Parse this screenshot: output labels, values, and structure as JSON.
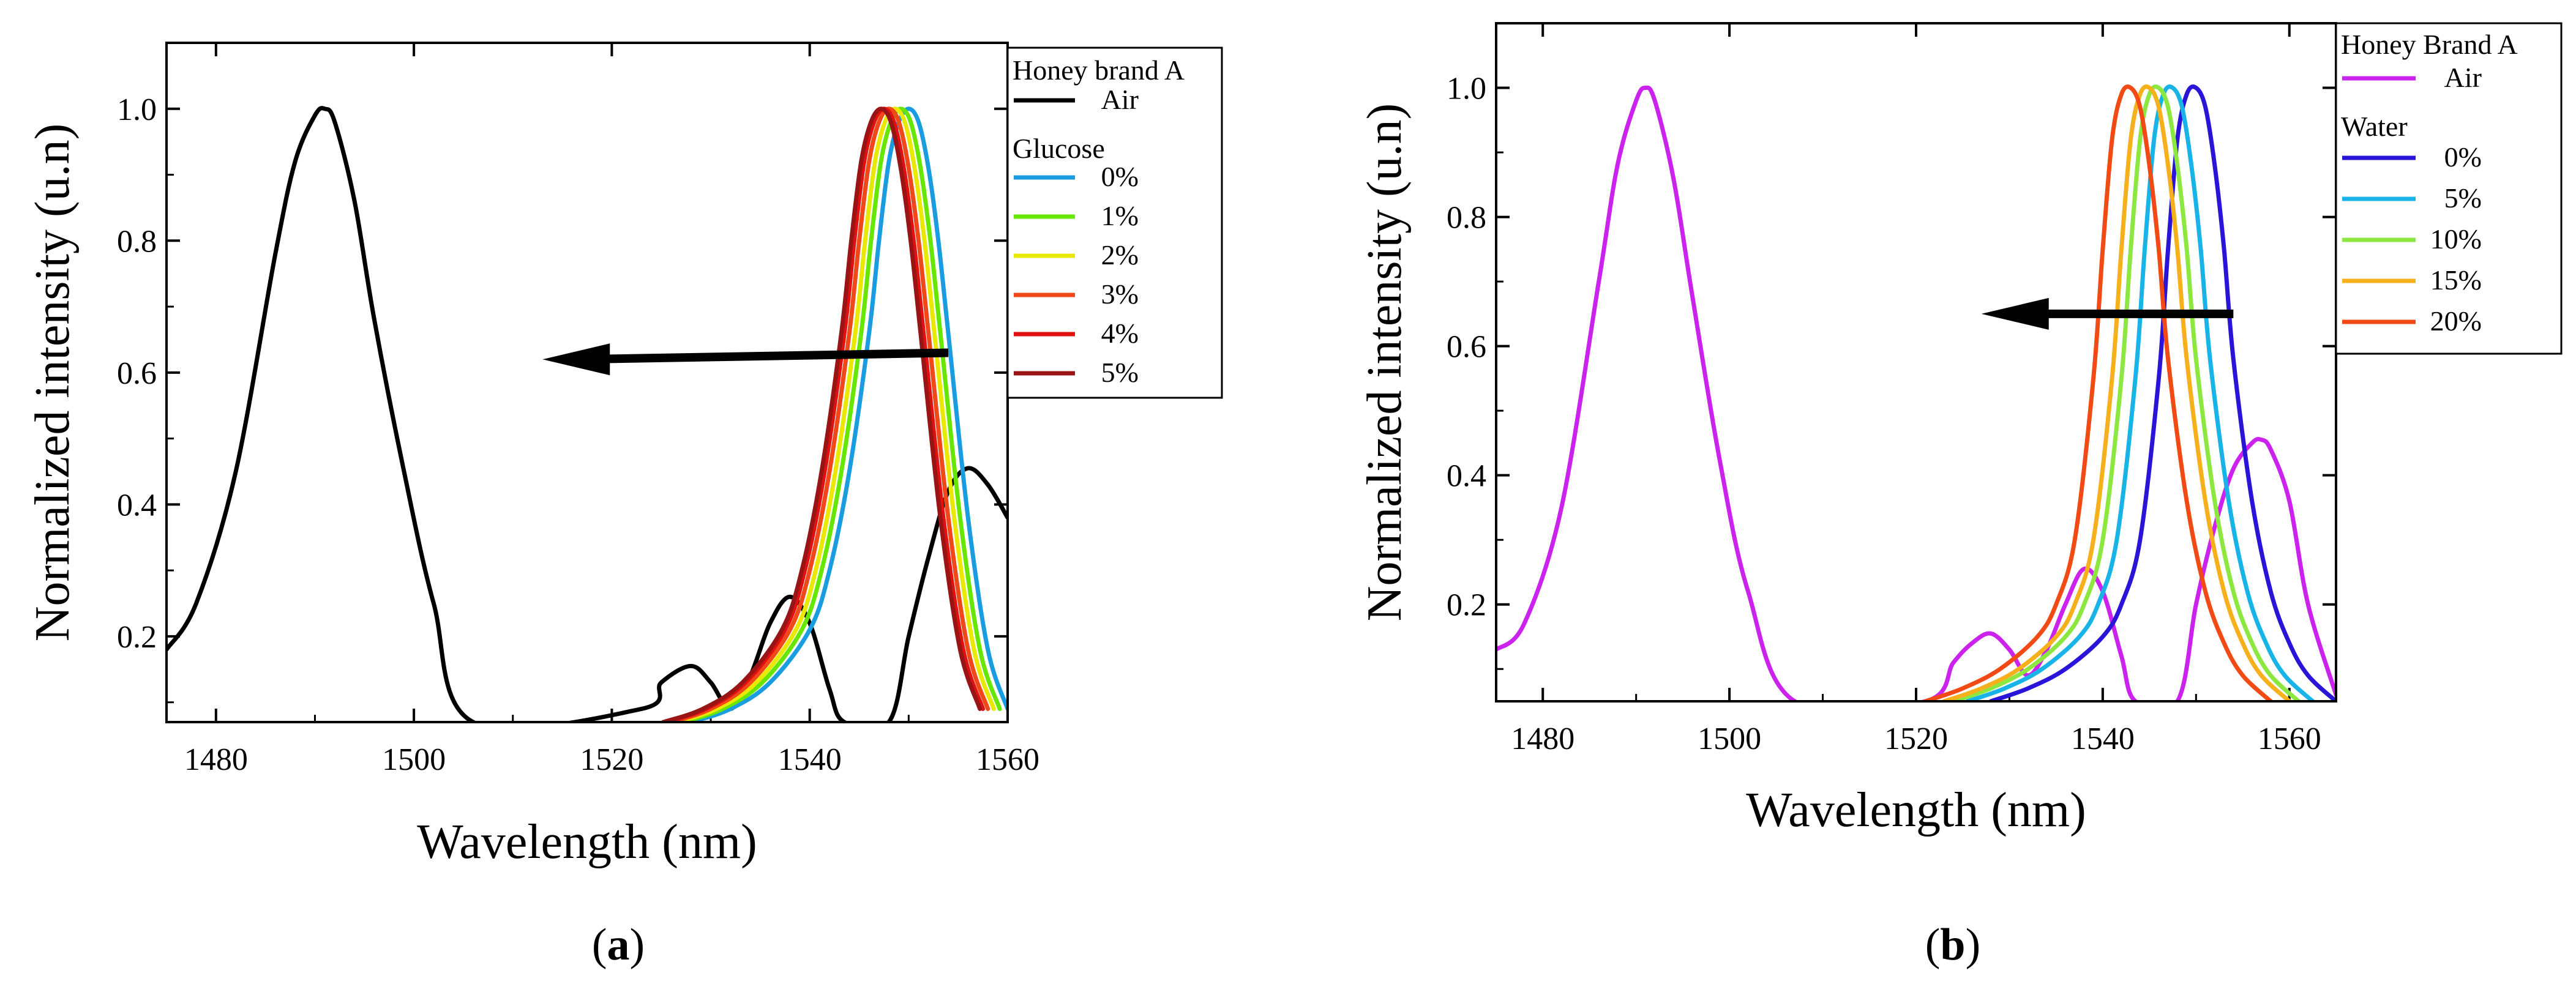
{
  "chart_data": [
    {
      "type": "line",
      "panel_label": "a",
      "xlabel": "Wavelength (nm)",
      "ylabel": "Normalized intensity (u.n)",
      "xlim": [
        1475,
        1560
      ],
      "ylim": [
        0.07,
        1.1
      ],
      "xticks": [
        1480,
        1500,
        1520,
        1540,
        1560
      ],
      "yticks": [
        0.2,
        0.4,
        0.6,
        0.8,
        1.0
      ],
      "ytick_labels": [
        "0.2",
        "0.4",
        "0.6",
        "0.8",
        "1.0"
      ],
      "legend_title": "Honey brand A",
      "legend_group_title": "Glucose",
      "legend_position": "top-right (outside)",
      "arrow": {
        "from": [
          1554,
          0.63
        ],
        "to": [
          1513,
          0.62
        ]
      },
      "series": [
        {
          "name": "Air",
          "color": "#000000",
          "x": [
            1475,
            1478,
            1482,
            1486,
            1488,
            1490,
            1491,
            1492,
            1494,
            1496,
            1499,
            1502,
            1506,
            1523,
            1525,
            1528,
            1530,
            1532,
            1534,
            1536,
            1538,
            1540,
            1542,
            1543.5,
            1548,
            1550,
            1552,
            1554,
            1556,
            1558,
            1560
          ],
          "y": [
            0.18,
            0.25,
            0.45,
            0.78,
            0.92,
            0.99,
            1.0,
            0.98,
            0.86,
            0.68,
            0.45,
            0.25,
            0.07,
            0.09,
            0.13,
            0.155,
            0.13,
            0.09,
            0.14,
            0.22,
            0.26,
            0.22,
            0.12,
            0.07,
            0.07,
            0.2,
            0.32,
            0.42,
            0.455,
            0.43,
            0.38
          ]
        },
        {
          "name": "0%",
          "color": "#1a9ce0",
          "x": [
            1528,
            1532,
            1536,
            1540,
            1542,
            1544,
            1546,
            1547,
            1548,
            1549,
            1550,
            1551,
            1552,
            1553,
            1554,
            1556,
            1558,
            1560
          ],
          "y": [
            0.07,
            0.09,
            0.13,
            0.21,
            0.3,
            0.45,
            0.66,
            0.8,
            0.92,
            0.98,
            1.0,
            0.98,
            0.91,
            0.8,
            0.66,
            0.38,
            0.18,
            0.09
          ]
        },
        {
          "name": "1%",
          "color": "#66e600",
          "x": [
            1527.2,
            1531.2,
            1535.2,
            1539.2,
            1541.2,
            1543.2,
            1545.2,
            1546.2,
            1547.2,
            1548.2,
            1549.2,
            1550.2,
            1551.2,
            1552.2,
            1553.2,
            1555.2,
            1557.2,
            1559.2
          ],
          "y": [
            0.07,
            0.09,
            0.13,
            0.21,
            0.3,
            0.45,
            0.66,
            0.8,
            0.92,
            0.98,
            1.0,
            0.98,
            0.91,
            0.8,
            0.66,
            0.38,
            0.18,
            0.09
          ]
        },
        {
          "name": "2%",
          "color": "#e8e800",
          "x": [
            1526.6,
            1530.6,
            1534.6,
            1538.6,
            1540.6,
            1542.6,
            1544.6,
            1545.6,
            1546.6,
            1547.6,
            1548.6,
            1549.6,
            1550.6,
            1551.6,
            1552.6,
            1554.6,
            1556.6,
            1558.6
          ],
          "y": [
            0.07,
            0.09,
            0.13,
            0.21,
            0.3,
            0.45,
            0.66,
            0.8,
            0.92,
            0.98,
            1.0,
            0.98,
            0.91,
            0.8,
            0.66,
            0.38,
            0.18,
            0.09
          ]
        },
        {
          "name": "3%",
          "color": "#f04818",
          "x": [
            1526.0,
            1530.0,
            1534.0,
            1538.0,
            1540.0,
            1542.0,
            1544.0,
            1545.0,
            1546.0,
            1547.0,
            1548.0,
            1549.0,
            1550.0,
            1551.0,
            1552.0,
            1554.0,
            1556.0,
            1558.0
          ],
          "y": [
            0.07,
            0.09,
            0.13,
            0.21,
            0.3,
            0.45,
            0.66,
            0.8,
            0.92,
            0.98,
            1.0,
            0.98,
            0.91,
            0.8,
            0.66,
            0.38,
            0.18,
            0.09
          ]
        },
        {
          "name": "4%",
          "color": "#e01010",
          "x": [
            1525.5,
            1529.5,
            1533.5,
            1537.5,
            1539.5,
            1541.5,
            1543.5,
            1544.5,
            1545.5,
            1546.5,
            1547.5,
            1548.5,
            1549.5,
            1550.5,
            1551.5,
            1553.5,
            1555.5,
            1557.5
          ],
          "y": [
            0.07,
            0.09,
            0.13,
            0.21,
            0.3,
            0.45,
            0.66,
            0.8,
            0.92,
            0.98,
            1.0,
            0.98,
            0.91,
            0.8,
            0.66,
            0.38,
            0.18,
            0.09
          ]
        },
        {
          "name": "5%",
          "color": "#991414",
          "x": [
            1525.2,
            1529.2,
            1533.2,
            1537.2,
            1539.2,
            1541.2,
            1543.2,
            1544.2,
            1545.2,
            1546.2,
            1547.2,
            1548.2,
            1549.2,
            1550.2,
            1551.2,
            1553.2,
            1555.2,
            1557.2
          ],
          "y": [
            0.07,
            0.09,
            0.13,
            0.21,
            0.3,
            0.45,
            0.66,
            0.8,
            0.92,
            0.98,
            1.0,
            0.98,
            0.91,
            0.8,
            0.66,
            0.38,
            0.18,
            0.09
          ]
        }
      ]
    },
    {
      "type": "line",
      "panel_label": "b",
      "xlabel": "Wavelength (nm)",
      "ylabel": "Normalized intensity (u.n)",
      "xlim": [
        1475,
        1565
      ],
      "ylim": [
        0.05,
        1.1
      ],
      "xticks": [
        1480,
        1500,
        1520,
        1540,
        1560
      ],
      "yticks": [
        0.2,
        0.4,
        0.6,
        0.8,
        1.0
      ],
      "ytick_labels": [
        "0.2",
        "0.4",
        "0.6",
        "0.8",
        "1.0"
      ],
      "legend_title": "Honey Brand A",
      "legend_group_title": "Water",
      "legend_position": "top-right (outside)",
      "arrow": {
        "from": [
          1554,
          0.65
        ],
        "to": [
          1527,
          0.65
        ]
      },
      "series": [
        {
          "name": "Air",
          "color": "#cc22ee",
          "x": [
            1475,
            1478,
            1482,
            1486,
            1488,
            1490,
            1491,
            1492,
            1494,
            1496,
            1499,
            1502,
            1507,
            1521,
            1524,
            1526,
            1528,
            1530,
            1532,
            1534,
            1536,
            1538,
            1540,
            1542,
            1543.5,
            1548,
            1550,
            1552,
            1554,
            1556,
            1557,
            1558,
            1560,
            1562,
            1565
          ],
          "y": [
            0.13,
            0.17,
            0.35,
            0.7,
            0.88,
            0.98,
            1.0,
            0.98,
            0.86,
            0.68,
            0.42,
            0.22,
            0.05,
            0.05,
            0.11,
            0.14,
            0.155,
            0.13,
            0.09,
            0.13,
            0.2,
            0.255,
            0.22,
            0.12,
            0.05,
            0.05,
            0.2,
            0.32,
            0.41,
            0.45,
            0.455,
            0.44,
            0.36,
            0.2,
            0.06
          ]
        },
        {
          "name": "0%",
          "color": "#2a14d8",
          "x": [
            1528,
            1532,
            1536,
            1540,
            1542,
            1544,
            1546,
            1547,
            1548,
            1549,
            1550,
            1551,
            1552,
            1553,
            1554,
            1556,
            1558,
            1560,
            1562,
            1565
          ],
          "y": [
            0.05,
            0.07,
            0.1,
            0.15,
            0.2,
            0.3,
            0.55,
            0.75,
            0.92,
            0.99,
            1.0,
            0.97,
            0.88,
            0.75,
            0.58,
            0.36,
            0.22,
            0.14,
            0.09,
            0.05
          ]
        },
        {
          "name": "5%",
          "color": "#18b4e8",
          "x": [
            1525.5,
            1529.5,
            1533.5,
            1537.5,
            1539.5,
            1541.5,
            1543.5,
            1544.5,
            1545.5,
            1546.5,
            1547.5,
            1548.5,
            1549.5,
            1550.5,
            1551.5,
            1553.5,
            1555.5,
            1557.5,
            1559.5,
            1562.5
          ],
          "y": [
            0.05,
            0.07,
            0.1,
            0.15,
            0.2,
            0.3,
            0.55,
            0.75,
            0.92,
            0.99,
            1.0,
            0.97,
            0.88,
            0.75,
            0.58,
            0.36,
            0.22,
            0.14,
            0.09,
            0.05
          ]
        },
        {
          "name": "10%",
          "color": "#8ce840",
          "x": [
            1524.0,
            1528.0,
            1532.0,
            1536.0,
            1538.0,
            1540.0,
            1542.0,
            1543.0,
            1544.0,
            1545.0,
            1546.0,
            1547.0,
            1548.0,
            1549.0,
            1550.0,
            1552.0,
            1554.0,
            1556.0,
            1558.0,
            1561.0
          ],
          "y": [
            0.05,
            0.07,
            0.1,
            0.15,
            0.2,
            0.3,
            0.55,
            0.75,
            0.92,
            0.99,
            1.0,
            0.97,
            0.88,
            0.75,
            0.58,
            0.36,
            0.22,
            0.14,
            0.09,
            0.05
          ]
        },
        {
          "name": "15%",
          "color": "#f5b01c",
          "x": [
            1523.0,
            1527.0,
            1531.0,
            1535.0,
            1537.0,
            1539.0,
            1541.0,
            1542.0,
            1543.0,
            1544.0,
            1545.0,
            1546.0,
            1547.0,
            1548.0,
            1549.0,
            1551.0,
            1553.0,
            1555.0,
            1557.0,
            1560.0
          ],
          "y": [
            0.05,
            0.07,
            0.1,
            0.15,
            0.2,
            0.3,
            0.55,
            0.75,
            0.92,
            0.99,
            1.0,
            0.97,
            0.88,
            0.75,
            0.58,
            0.36,
            0.22,
            0.14,
            0.09,
            0.05
          ]
        },
        {
          "name": "20%",
          "color": "#f24a14",
          "x": [
            1521.0,
            1525.0,
            1529.0,
            1533.0,
            1535.0,
            1537.0,
            1539.0,
            1540.0,
            1541.0,
            1542.0,
            1543.0,
            1544.0,
            1545.0,
            1546.0,
            1547.0,
            1549.0,
            1551.0,
            1553.0,
            1555.0,
            1558.0
          ],
          "y": [
            0.05,
            0.07,
            0.1,
            0.15,
            0.2,
            0.3,
            0.55,
            0.75,
            0.92,
            0.99,
            1.0,
            0.97,
            0.88,
            0.75,
            0.58,
            0.36,
            0.22,
            0.14,
            0.09,
            0.05
          ]
        }
      ]
    }
  ]
}
